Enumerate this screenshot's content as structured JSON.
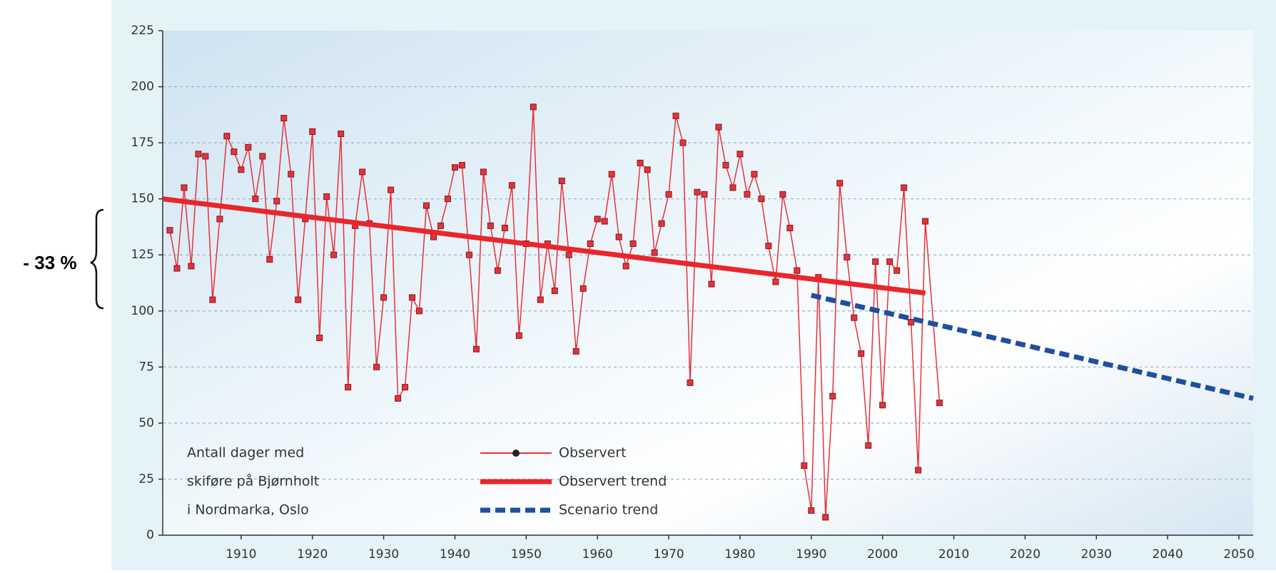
{
  "chart_data": {
    "type": "line",
    "annotation": "- 33 %",
    "note": [
      "Antall dager med",
      "skiføre på Bjørnholt",
      "i Nordmarka, Oslo"
    ],
    "xlim": [
      1899,
      2052
    ],
    "xticks": [
      1910,
      1920,
      1930,
      1940,
      1950,
      1960,
      1970,
      1980,
      1990,
      2000,
      2010,
      2020,
      2030,
      2040,
      2050
    ],
    "ylim": [
      0,
      225
    ],
    "yticks": [
      0,
      25,
      50,
      75,
      100,
      125,
      150,
      175,
      200,
      225
    ],
    "grid": true,
    "series": [
      {
        "name": "Observert",
        "color": "#e8313a",
        "markers": true,
        "x": [
          1900,
          1901,
          1902,
          1903,
          1904,
          1905,
          1906,
          1907,
          1908,
          1909,
          1910,
          1911,
          1912,
          1913,
          1914,
          1915,
          1916,
          1917,
          1918,
          1919,
          1920,
          1921,
          1922,
          1923,
          1924,
          1925,
          1926,
          1927,
          1928,
          1929,
          1930,
          1931,
          1932,
          1933,
          1934,
          1935,
          1936,
          1937,
          1938,
          1939,
          1940,
          1941,
          1942,
          1943,
          1944,
          1945,
          1946,
          1947,
          1948,
          1949,
          1950,
          1951,
          1952,
          1953,
          1954,
          1955,
          1956,
          1957,
          1958,
          1959,
          1960,
          1961,
          1962,
          1963,
          1964,
          1965,
          1966,
          1967,
          1968,
          1969,
          1970,
          1971,
          1972,
          1973,
          1974,
          1975,
          1976,
          1977,
          1978,
          1979,
          1980,
          1981,
          1982,
          1983,
          1984,
          1985,
          1986,
          1987,
          1988,
          1989,
          1990,
          1991,
          1992,
          1993,
          1994,
          1995,
          1996,
          1997,
          1998,
          1999,
          2000,
          2001,
          2002,
          2003,
          2004,
          2005,
          2006,
          2008
        ],
        "values": [
          136,
          119,
          155,
          120,
          170,
          169,
          105,
          141,
          178,
          171,
          163,
          173,
          150,
          169,
          123,
          149,
          186,
          161,
          105,
          141,
          180,
          88,
          151,
          125,
          179,
          66,
          138,
          162,
          139,
          75,
          106,
          154,
          61,
          66,
          106,
          100,
          147,
          133,
          138,
          150,
          164,
          165,
          125,
          83,
          162,
          138,
          118,
          137,
          156,
          89,
          130,
          191,
          105,
          130,
          109,
          158,
          125,
          82,
          110,
          130,
          141,
          140,
          161,
          133,
          120,
          130,
          166,
          163,
          126,
          139,
          152,
          187,
          175,
          68,
          153,
          152,
          112,
          182,
          165,
          155,
          170,
          152,
          161,
          150,
          129,
          113,
          152,
          137,
          118,
          31,
          11,
          115,
          8,
          62,
          157,
          124,
          97,
          81,
          40,
          122,
          58,
          122,
          118,
          155,
          95,
          29,
          140,
          59
        ]
      },
      {
        "name": "Observert trend",
        "color": "#e8262c",
        "width": 7,
        "x": [
          1899,
          2006
        ],
        "values": [
          150,
          108
        ]
      },
      {
        "name": "Scenario trend",
        "color": "#1f4f9e",
        "width": 7,
        "dashed": true,
        "x": [
          1990,
          2052
        ],
        "values": [
          107,
          61
        ]
      }
    ]
  }
}
